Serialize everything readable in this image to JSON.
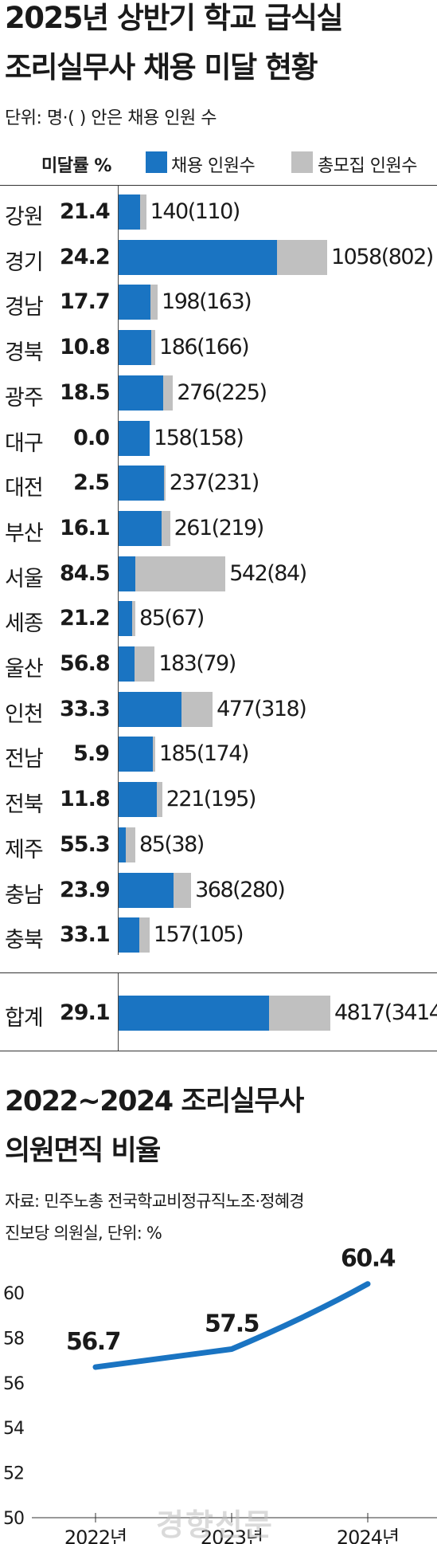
{
  "chart_data": [
    {
      "type": "bar",
      "title": "2025년 상반기 학교 급식실 조리실무사 채용 미달 현황",
      "title_lines": [
        "2025년 상반기 학교 급식실",
        "조리실무사 채용 미달 현황"
      ],
      "unit_note": "단위: 명·( ) 안은 채용 인원 수",
      "rate_header": "미달률 %",
      "legend": [
        {
          "name": "채용 인원수",
          "color": "#1a74c2"
        },
        {
          "name": "총모집 인원수",
          "color": "#c0c0c0"
        }
      ],
      "categories": [
        "강원",
        "경기",
        "경남",
        "경북",
        "광주",
        "대구",
        "대전",
        "부산",
        "서울",
        "세종",
        "울산",
        "인천",
        "전남",
        "전북",
        "제주",
        "충남",
        "충북"
      ],
      "series": [
        {
          "name": "채용 인원수",
          "values": [
            110,
            802,
            163,
            166,
            225,
            158,
            231,
            219,
            84,
            67,
            79,
            318,
            174,
            195,
            38,
            280,
            105
          ]
        },
        {
          "name": "총모집 인원수",
          "values": [
            140,
            1058,
            198,
            186,
            276,
            158,
            237,
            261,
            542,
            85,
            183,
            477,
            185,
            221,
            85,
            368,
            157
          ]
        }
      ],
      "rates": [
        "21.4",
        "24.2",
        "17.7",
        "10.8",
        "18.5",
        "0.0",
        "2.5",
        "16.1",
        "84.5",
        "21.2",
        "56.8",
        "33.3",
        "5.9",
        "11.8",
        "55.3",
        "23.9",
        "33.1"
      ],
      "total": {
        "label": "합계",
        "rate": "29.1",
        "recruited": 4817,
        "hired": 3414
      },
      "xlim": [
        0,
        1058
      ]
    },
    {
      "type": "line",
      "title": "2022~2024 조리실무사 의원면직 비율",
      "title_lines": [
        "2022~2024 조리실무사",
        "의원면직 비율"
      ],
      "source_lines": [
        "자료: 민주노총 전국학교비정규직노조·정혜경",
        "진보당 의원실, 단위: %"
      ],
      "x": [
        "2022년",
        "2023년",
        "2024년"
      ],
      "series": [
        {
          "values": [
            56.7,
            57.5,
            60.4
          ]
        }
      ],
      "data_labels": [
        "56.7",
        "57.5",
        "60.4"
      ],
      "ylim": [
        50,
        60
      ],
      "yticks": [
        "60",
        "58",
        "56",
        "54",
        "52",
        "50"
      ],
      "line_color": "#1a74c2"
    }
  ],
  "watermark": "경향신문"
}
